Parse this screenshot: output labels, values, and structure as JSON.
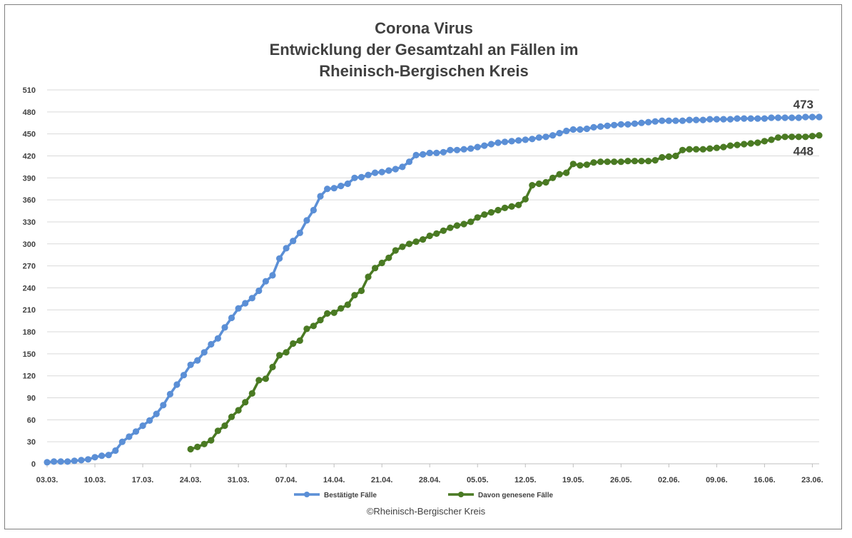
{
  "chart_data": {
    "type": "line",
    "title": [
      "Corona Virus",
      "Entwicklung der Gesamtzahl an Fällen im",
      "Rheinisch-Bergischen Kreis"
    ],
    "xlabel": "",
    "ylabel": "",
    "ylim": [
      0,
      510
    ],
    "yticks": [
      0,
      30,
      60,
      90,
      120,
      150,
      180,
      210,
      240,
      270,
      300,
      330,
      360,
      390,
      420,
      450,
      480,
      510
    ],
    "x_ticklabels": [
      "03.03.",
      "10.03.",
      "17.03.",
      "24.03.",
      "31.03.",
      "07.04.",
      "14.04.",
      "21.04.",
      "28.04.",
      "05.05.",
      "12.05.",
      "19.05.",
      "26.05.",
      "02.06.",
      "09.06.",
      "16.06.",
      "23.06."
    ],
    "x_start": "03.03.",
    "x_end": "24.06.",
    "grid": true,
    "legend_position": "bottom",
    "series": [
      {
        "name": "Bestätigte Fälle",
        "color": "#5b8fd6",
        "start": "03.03.",
        "end_label": "473",
        "values": [
          2,
          3,
          3,
          3,
          4,
          5,
          6,
          9,
          11,
          12,
          18,
          30,
          37,
          44,
          52,
          59,
          68,
          80,
          95,
          108,
          121,
          135,
          141,
          152,
          163,
          171,
          186,
          199,
          212,
          219,
          226,
          236,
          249,
          257,
          280,
          294,
          304,
          315,
          332,
          346,
          365,
          375,
          376,
          379,
          382,
          390,
          391,
          394,
          397,
          398,
          400,
          402,
          405,
          412,
          421,
          422,
          424,
          424,
          425,
          428,
          428,
          429,
          430,
          432,
          434,
          436,
          438,
          439,
          440,
          441,
          442,
          443,
          445,
          446,
          448,
          451,
          454,
          456,
          456,
          457,
          459,
          460,
          461,
          462,
          463,
          463,
          464,
          465,
          466,
          467,
          468,
          468,
          468,
          468,
          469,
          469,
          469,
          470,
          470,
          470,
          470,
          471,
          471,
          471,
          471,
          471,
          472,
          472,
          472,
          472,
          472,
          473,
          473,
          473
        ]
      },
      {
        "name": "Davon genesene Fälle",
        "color": "#4a7a23",
        "start": "24.03.",
        "end_label": "448",
        "values": [
          20,
          23,
          27,
          32,
          45,
          52,
          64,
          73,
          84,
          96,
          114,
          116,
          132,
          148,
          152,
          164,
          168,
          184,
          188,
          196,
          205,
          206,
          212,
          217,
          230,
          236,
          255,
          267,
          274,
          281,
          291,
          296,
          300,
          303,
          306,
          311,
          314,
          318,
          322,
          325,
          327,
          330,
          336,
          340,
          343,
          346,
          349,
          351,
          353,
          361,
          380,
          382,
          384,
          390,
          395,
          397,
          409,
          407,
          408,
          411,
          412,
          412,
          412,
          412,
          413,
          413,
          413,
          413,
          414,
          418,
          419,
          420,
          428,
          429,
          429,
          429,
          430,
          431,
          432,
          434,
          435,
          436,
          437,
          438,
          440,
          442,
          445,
          446,
          446,
          446,
          446,
          447,
          448
        ]
      }
    ]
  },
  "copyright": "©Rheinisch-Bergischer Kreis"
}
